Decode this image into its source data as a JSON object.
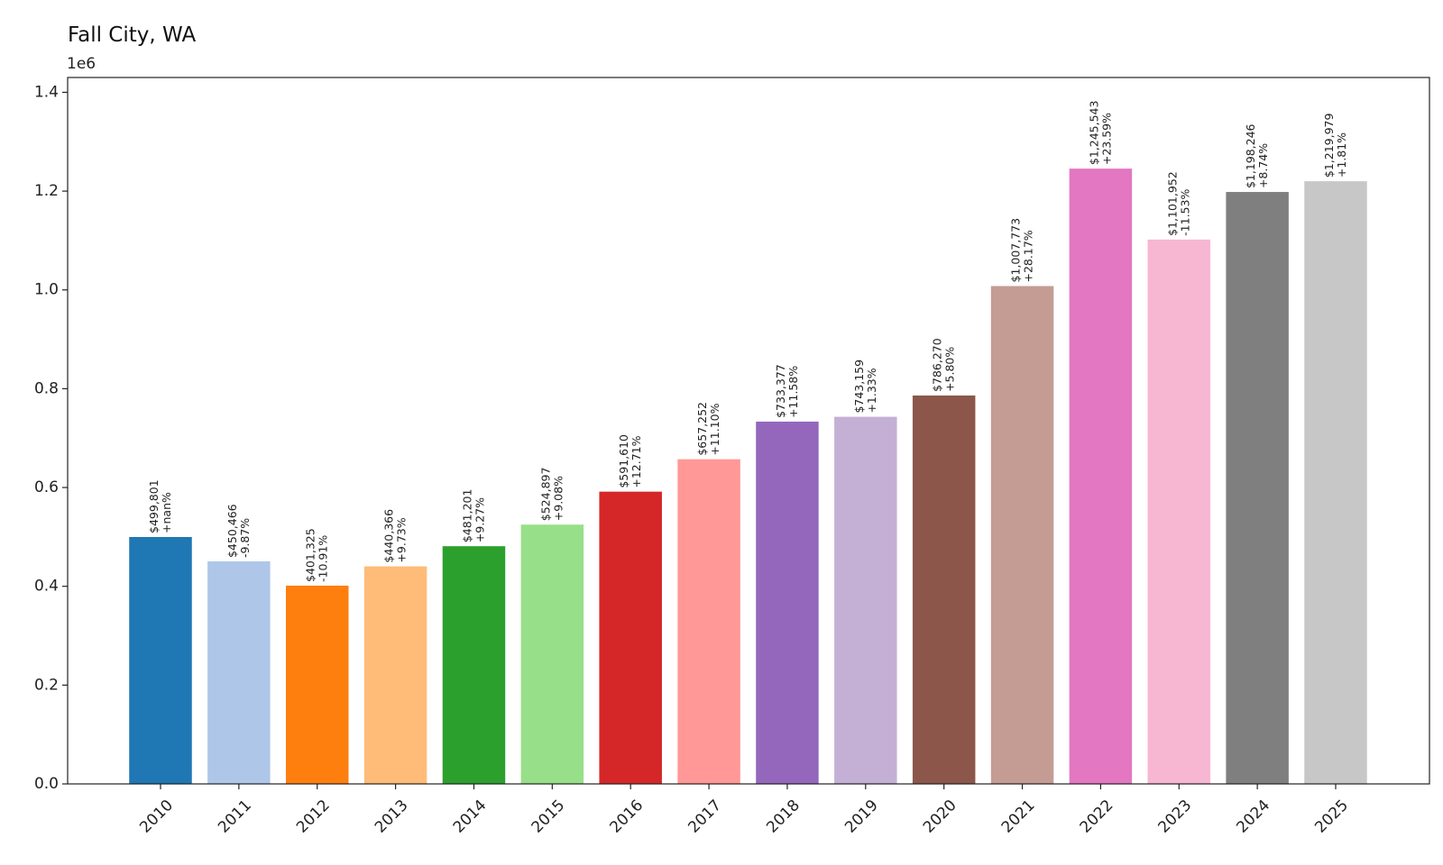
{
  "chart_data": {
    "type": "bar",
    "title": "Fall City, WA",
    "offset_label": "1e6",
    "xlabel": "",
    "ylabel": "",
    "ylim": [
      0,
      1.43
    ],
    "y_scale": 1000000,
    "y_ticks": [
      0.0,
      0.2,
      0.4,
      0.6,
      0.8,
      1.0,
      1.2,
      1.4
    ],
    "y_tick_labels": [
      "0.0",
      "0.2",
      "0.4",
      "0.6",
      "0.8",
      "1.0",
      "1.2",
      "1.4"
    ],
    "grid": false,
    "legend": "none",
    "categories": [
      "2010",
      "2011",
      "2012",
      "2013",
      "2014",
      "2015",
      "2016",
      "2017",
      "2018",
      "2019",
      "2020",
      "2021",
      "2022",
      "2023",
      "2024",
      "2025"
    ],
    "values": [
      499801,
      450466,
      401325,
      440366,
      481201,
      524897,
      591610,
      657252,
      733377,
      743159,
      786270,
      1007773,
      1245543,
      1101952,
      1198246,
      1219979
    ],
    "value_labels": [
      "$499,801",
      "$450,466",
      "$401,325",
      "$440,366",
      "$481,201",
      "$524,897",
      "$591,610",
      "$657,252",
      "$733,377",
      "$743,159",
      "$786,270",
      "$1,007,773",
      "$1,245,543",
      "$1,101,952",
      "$1,198,246",
      "$1,219,979"
    ],
    "change_labels": [
      "+nan%",
      "-9.87%",
      "-10.91%",
      "+9.73%",
      "+9.27%",
      "+9.08%",
      "+12.71%",
      "+11.10%",
      "+11.58%",
      "+1.33%",
      "+5.80%",
      "+28.17%",
      "+23.59%",
      "-11.53%",
      "+8.74%",
      "+1.81%"
    ],
    "colors": [
      "#1f77b4",
      "#aec7e8",
      "#ff7f0e",
      "#ffbb78",
      "#2ca02c",
      "#98df8a",
      "#d62728",
      "#ff9896",
      "#9467bd",
      "#c5b0d5",
      "#8c564b",
      "#c49c94",
      "#e377c2",
      "#f7b6d2",
      "#7f7f7f",
      "#c7c7c7"
    ]
  }
}
